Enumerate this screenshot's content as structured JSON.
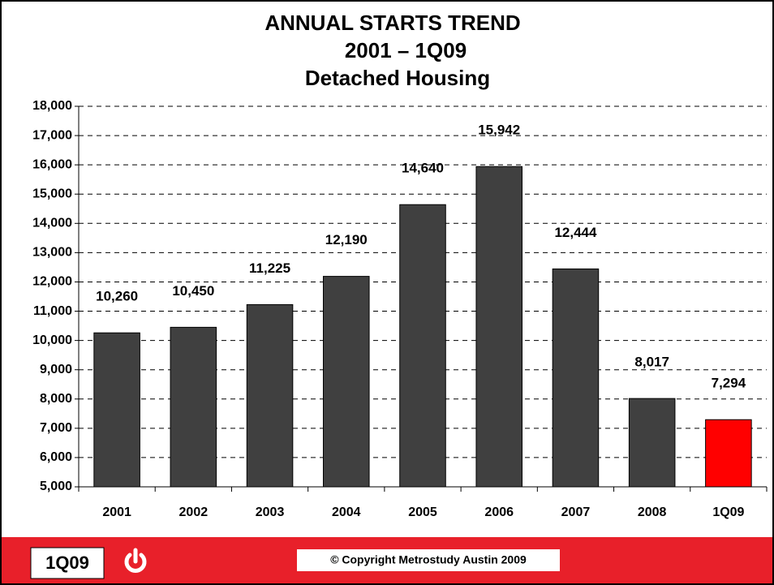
{
  "chart_data": {
    "type": "bar",
    "title": [
      "ANNUAL  STARTS TREND",
      "2001 – 1Q09",
      "Detached Housing"
    ],
    "categories": [
      "2001",
      "2002",
      "2003",
      "2004",
      "2005",
      "2006",
      "2007",
      "2008",
      "1Q09"
    ],
    "values": [
      10260,
      10450,
      11225,
      12190,
      14640,
      15942,
      12444,
      8017,
      7294
    ],
    "value_labels": [
      "10,260",
      "10,450",
      "11,225",
      "12,190",
      "14,640",
      "15,942",
      "12,444",
      "8,017",
      "7,294"
    ],
    "colors": [
      "#404040",
      "#404040",
      "#404040",
      "#404040",
      "#404040",
      "#404040",
      "#404040",
      "#404040",
      "#ff0000"
    ],
    "ylim": [
      5000,
      18000
    ],
    "yticks": [
      {
        "value": 5000,
        "label": "5,000"
      },
      {
        "value": 6000,
        "label": "6,000"
      },
      {
        "value": 7000,
        "label": "7,000"
      },
      {
        "value": 8000,
        "label": "8,000"
      },
      {
        "value": 9000,
        "label": "9,000"
      },
      {
        "value": 10000,
        "label": "10,000"
      },
      {
        "value": 11000,
        "label": "11,000"
      },
      {
        "value": 12000,
        "label": "12,000"
      },
      {
        "value": 13000,
        "label": "13,000"
      },
      {
        "value": 14000,
        "label": "14,000"
      },
      {
        "value": 15000,
        "label": "15,000"
      },
      {
        "value": 16000,
        "label": "16,000"
      },
      {
        "value": 17000,
        "label": "17,000"
      },
      {
        "value": 18000,
        "label": "18,000"
      }
    ],
    "grid": true
  },
  "footer": {
    "badge": "1Q09",
    "copyright": "© Copyright Metrostudy Austin 2009"
  }
}
